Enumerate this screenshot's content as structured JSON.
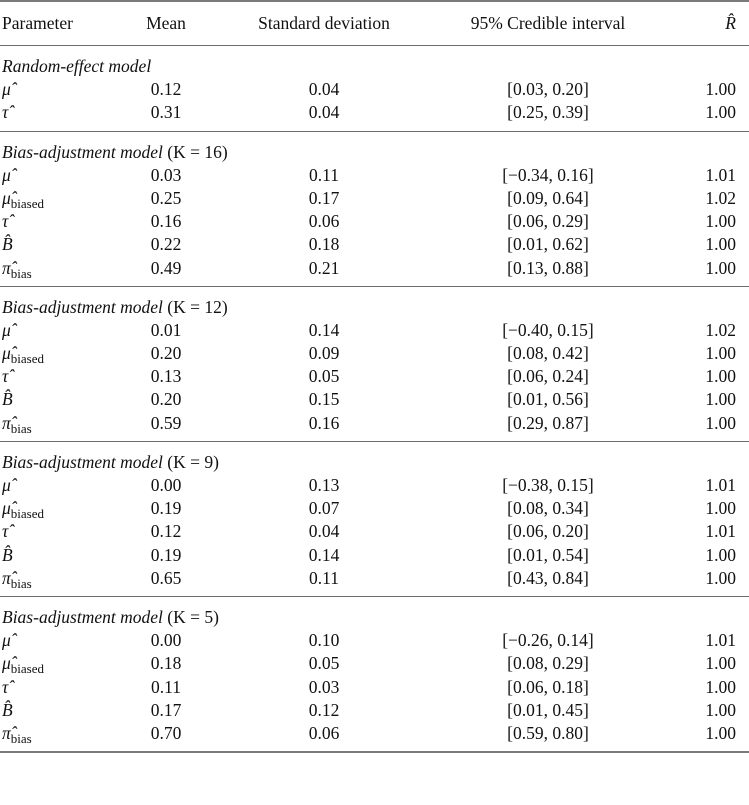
{
  "table": {
    "headers": {
      "parameter": "Parameter",
      "mean": "Mean",
      "sd": "Standard deviation",
      "ci": "95% Credible interval",
      "rhat": "R̂"
    },
    "sections": [
      {
        "title": "Random-effect model",
        "k_suffix": "",
        "rows": [
          {
            "symbol": "μ̂",
            "sub": "",
            "mean": "0.12",
            "sd": "0.04",
            "ci": "[0.03, 0.20]",
            "rhat": "1.00"
          },
          {
            "symbol": "τ̂",
            "sub": "",
            "mean": "0.31",
            "sd": "0.04",
            "ci": "[0.25, 0.39]",
            "rhat": "1.00"
          }
        ]
      },
      {
        "title": "Bias-adjustment model",
        "k_suffix": "(K = 16)",
        "rows": [
          {
            "symbol": "μ̂",
            "sub": "",
            "mean": "0.03",
            "sd": "0.11",
            "ci": "[−0.34, 0.16]",
            "rhat": "1.01"
          },
          {
            "symbol": "μ̂",
            "sub": "biased",
            "mean": "0.25",
            "sd": "0.17",
            "ci": "[0.09, 0.64]",
            "rhat": "1.02"
          },
          {
            "symbol": "τ̂",
            "sub": "",
            "mean": "0.16",
            "sd": "0.06",
            "ci": "[0.06, 0.29]",
            "rhat": "1.00"
          },
          {
            "symbol": "B̂",
            "sub": "",
            "mean": "0.22",
            "sd": "0.18",
            "ci": "[0.01, 0.62]",
            "rhat": "1.00"
          },
          {
            "symbol": "π̂",
            "sub": "bias",
            "mean": "0.49",
            "sd": "0.21",
            "ci": "[0.13, 0.88]",
            "rhat": "1.00"
          }
        ]
      },
      {
        "title": "Bias-adjustment model",
        "k_suffix": "(K = 12)",
        "rows": [
          {
            "symbol": "μ̂",
            "sub": "",
            "mean": "0.01",
            "sd": "0.14",
            "ci": "[−0.40, 0.15]",
            "rhat": "1.02"
          },
          {
            "symbol": "μ̂",
            "sub": "biased",
            "mean": "0.20",
            "sd": "0.09",
            "ci": "[0.08, 0.42]",
            "rhat": "1.00"
          },
          {
            "symbol": "τ̂",
            "sub": "",
            "mean": "0.13",
            "sd": "0.05",
            "ci": "[0.06, 0.24]",
            "rhat": "1.00"
          },
          {
            "symbol": "B̂",
            "sub": "",
            "mean": "0.20",
            "sd": "0.15",
            "ci": "[0.01, 0.56]",
            "rhat": "1.00"
          },
          {
            "symbol": "π̂",
            "sub": "bias",
            "mean": "0.59",
            "sd": "0.16",
            "ci": "[0.29, 0.87]",
            "rhat": "1.00"
          }
        ]
      },
      {
        "title": "Bias-adjustment model",
        "k_suffix": "(K = 9)",
        "rows": [
          {
            "symbol": "μ̂",
            "sub": "",
            "mean": "0.00",
            "sd": "0.13",
            "ci": "[−0.38, 0.15]",
            "rhat": "1.01"
          },
          {
            "symbol": "μ̂",
            "sub": "biased",
            "mean": "0.19",
            "sd": "0.07",
            "ci": "[0.08, 0.34]",
            "rhat": "1.00"
          },
          {
            "symbol": "τ̂",
            "sub": "",
            "mean": "0.12",
            "sd": "0.04",
            "ci": "[0.06, 0.20]",
            "rhat": "1.01"
          },
          {
            "symbol": "B̂",
            "sub": "",
            "mean": "0.19",
            "sd": "0.14",
            "ci": "[0.01, 0.54]",
            "rhat": "1.00"
          },
          {
            "symbol": "π̂",
            "sub": "bias",
            "mean": "0.65",
            "sd": "0.11",
            "ci": "[0.43, 0.84]",
            "rhat": "1.00"
          }
        ]
      },
      {
        "title": "Bias-adjustment model",
        "k_suffix": "(K = 5)",
        "rows": [
          {
            "symbol": "μ̂",
            "sub": "",
            "mean": "0.00",
            "sd": "0.10",
            "ci": "[−0.26, 0.14]",
            "rhat": "1.01"
          },
          {
            "symbol": "μ̂",
            "sub": "biased",
            "mean": "0.18",
            "sd": "0.05",
            "ci": "[0.08, 0.29]",
            "rhat": "1.00"
          },
          {
            "symbol": "τ̂",
            "sub": "",
            "mean": "0.11",
            "sd": "0.03",
            "ci": "[0.06, 0.18]",
            "rhat": "1.00"
          },
          {
            "symbol": "B̂",
            "sub": "",
            "mean": "0.17",
            "sd": "0.12",
            "ci": "[0.01, 0.45]",
            "rhat": "1.00"
          },
          {
            "symbol": "π̂",
            "sub": "bias",
            "mean": "0.70",
            "sd": "0.06",
            "ci": "[0.59, 0.80]",
            "rhat": "1.00"
          }
        ]
      }
    ]
  }
}
